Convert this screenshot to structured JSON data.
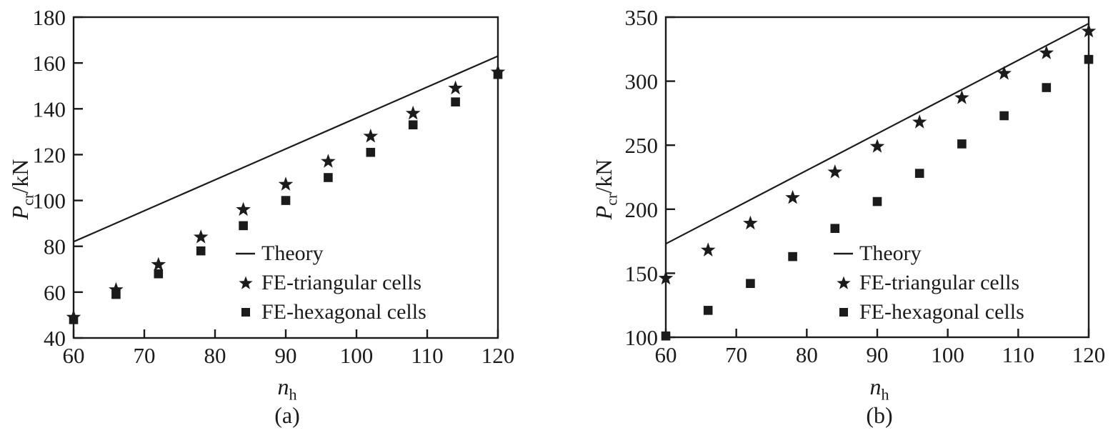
{
  "page": {
    "background": "#ffffff",
    "ink": "#1b1b1b"
  },
  "legend": {
    "items": [
      {
        "marker": "line",
        "label": "Theory"
      },
      {
        "marker": "star",
        "label": "FE-triangular cells"
      },
      {
        "marker": "square",
        "label": "FE-hexagonal cells"
      }
    ]
  },
  "chart_data": [
    {
      "type": "scatter",
      "panel": "a",
      "caption": "(a)",
      "xlabel": {
        "base": "n",
        "sub": "h"
      },
      "ylabel": {
        "base": "P",
        "sub": "cr",
        "unit": "/kN"
      },
      "xlim": [
        60,
        120
      ],
      "ylim": [
        40,
        180
      ],
      "x_ticks": [
        60,
        70,
        80,
        90,
        100,
        110,
        120
      ],
      "y_ticks": [
        40,
        60,
        80,
        100,
        120,
        140,
        160,
        180
      ],
      "grid": false,
      "legend_position": "inside lower-right",
      "x": [
        60,
        66,
        72,
        78,
        84,
        90,
        96,
        102,
        108,
        114,
        120
      ],
      "series": [
        {
          "name": "Theory",
          "type": "line",
          "x": [
            60,
            120
          ],
          "values": [
            82,
            163
          ]
        },
        {
          "name": "FE-triangular cells",
          "type": "scatter",
          "marker": "star",
          "values": [
            49,
            61,
            72,
            84,
            96,
            107,
            117,
            128,
            138,
            149,
            156
          ]
        },
        {
          "name": "FE-hexagonal cells",
          "type": "scatter",
          "marker": "square",
          "values": [
            48,
            59,
            68,
            78,
            89,
            100,
            110,
            121,
            133,
            143,
            155
          ]
        }
      ]
    },
    {
      "type": "scatter",
      "panel": "b",
      "caption": "(b)",
      "xlabel": {
        "base": "n",
        "sub": "h"
      },
      "ylabel": {
        "base": "P",
        "sub": "cr",
        "unit": "/kN"
      },
      "xlim": [
        60,
        120
      ],
      "ylim": [
        100,
        350
      ],
      "x_ticks": [
        60,
        70,
        80,
        90,
        100,
        110,
        120
      ],
      "y_ticks": [
        100,
        150,
        200,
        250,
        300,
        350
      ],
      "grid": false,
      "legend_position": "inside lower-right",
      "x": [
        60,
        66,
        72,
        78,
        84,
        90,
        96,
        102,
        108,
        114,
        120
      ],
      "series": [
        {
          "name": "Theory",
          "type": "line",
          "x": [
            60,
            120
          ],
          "values": [
            173,
            345
          ]
        },
        {
          "name": "FE-triangular cells",
          "type": "scatter",
          "marker": "star",
          "values": [
            146,
            168,
            189,
            209,
            229,
            249,
            268,
            287,
            306,
            322,
            339
          ]
        },
        {
          "name": "FE-hexagonal cells",
          "type": "scatter",
          "marker": "square",
          "values": [
            101,
            121,
            142,
            163,
            185,
            206,
            228,
            251,
            273,
            295,
            317
          ]
        }
      ]
    }
  ]
}
